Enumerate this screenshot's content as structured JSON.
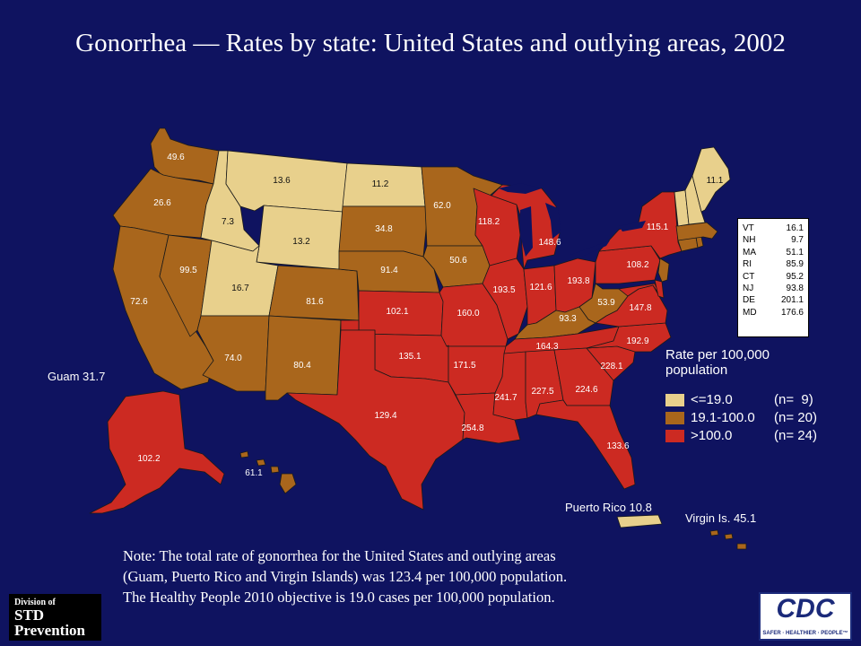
{
  "title": "Gonorrhea — Rates by state: United States and outlying areas, 2002",
  "colors": {
    "background": "#0f1360",
    "low": "#e8d08c",
    "mid": "#a9661c",
    "high": "#cc2a22"
  },
  "states": [
    {
      "abbr": "WA",
      "rate": "49.6",
      "cat": "mid"
    },
    {
      "abbr": "OR",
      "rate": "26.6",
      "cat": "mid"
    },
    {
      "abbr": "CA",
      "rate": "72.6",
      "cat": "mid"
    },
    {
      "abbr": "NV",
      "rate": "99.5",
      "cat": "mid"
    },
    {
      "abbr": "ID",
      "rate": "7.3",
      "cat": "low"
    },
    {
      "abbr": "MT",
      "rate": "13.6",
      "cat": "low"
    },
    {
      "abbr": "WY",
      "rate": "13.2",
      "cat": "low"
    },
    {
      "abbr": "UT",
      "rate": "16.7",
      "cat": "low"
    },
    {
      "abbr": "AZ",
      "rate": "74.0",
      "cat": "mid"
    },
    {
      "abbr": "CO",
      "rate": "81.6",
      "cat": "mid"
    },
    {
      "abbr": "NM",
      "rate": "80.4",
      "cat": "mid"
    },
    {
      "abbr": "ND",
      "rate": "11.2",
      "cat": "low"
    },
    {
      "abbr": "SD",
      "rate": "34.8",
      "cat": "mid"
    },
    {
      "abbr": "NE",
      "rate": "91.4",
      "cat": "mid"
    },
    {
      "abbr": "KS",
      "rate": "102.1",
      "cat": "high"
    },
    {
      "abbr": "OK",
      "rate": "135.1",
      "cat": "high"
    },
    {
      "abbr": "TX",
      "rate": "129.4",
      "cat": "high"
    },
    {
      "abbr": "MN",
      "rate": "62.0",
      "cat": "mid"
    },
    {
      "abbr": "IA",
      "rate": "50.6",
      "cat": "mid"
    },
    {
      "abbr": "MO",
      "rate": "160.0",
      "cat": "high"
    },
    {
      "abbr": "AR",
      "rate": "171.5",
      "cat": "high"
    },
    {
      "abbr": "LA",
      "rate": "254.8",
      "cat": "high"
    },
    {
      "abbr": "WI",
      "rate": "118.2",
      "cat": "high"
    },
    {
      "abbr": "IL",
      "rate": "193.5",
      "cat": "high"
    },
    {
      "abbr": "MI",
      "rate": "148.6",
      "cat": "high"
    },
    {
      "abbr": "IN",
      "rate": "121.6",
      "cat": "high"
    },
    {
      "abbr": "OH",
      "rate": "193.8",
      "cat": "high"
    },
    {
      "abbr": "KY",
      "rate": "93.3",
      "cat": "mid"
    },
    {
      "abbr": "TN",
      "rate": "164.3",
      "cat": "high"
    },
    {
      "abbr": "MS",
      "rate": "241.7",
      "cat": "high"
    },
    {
      "abbr": "AL",
      "rate": "227.5",
      "cat": "high"
    },
    {
      "abbr": "GA",
      "rate": "224.6",
      "cat": "high"
    },
    {
      "abbr": "FL",
      "rate": "133.6",
      "cat": "high"
    },
    {
      "abbr": "SC",
      "rate": "228.1",
      "cat": "high"
    },
    {
      "abbr": "NC",
      "rate": "192.9",
      "cat": "high"
    },
    {
      "abbr": "VA",
      "rate": "147.8",
      "cat": "high"
    },
    {
      "abbr": "WV",
      "rate": "53.9",
      "cat": "mid"
    },
    {
      "abbr": "PA",
      "rate": "108.2",
      "cat": "high"
    },
    {
      "abbr": "NY",
      "rate": "115.1",
      "cat": "high"
    },
    {
      "abbr": "ME",
      "rate": "11.1",
      "cat": "low"
    },
    {
      "abbr": "AK",
      "rate": "102.2",
      "cat": "high"
    },
    {
      "abbr": "HI",
      "rate": "61.1",
      "cat": "mid"
    }
  ],
  "northeast_table": [
    {
      "abbr": "VT",
      "rate": "16.1"
    },
    {
      "abbr": "NH",
      "rate": "9.7"
    },
    {
      "abbr": "MA",
      "rate": "51.1"
    },
    {
      "abbr": "RI",
      "rate": "85.9"
    },
    {
      "abbr": "CT",
      "rate": "95.2"
    },
    {
      "abbr": "NJ",
      "rate": "93.8"
    },
    {
      "abbr": "DE",
      "rate": "201.1"
    },
    {
      "abbr": "MD",
      "rate": "176.6"
    }
  ],
  "outlying": {
    "guam": "Guam 31.7",
    "puerto_rico": "Puerto Rico 10.8",
    "virgin_islands": "Virgin Is. 45.1"
  },
  "legend": {
    "title_line1": "Rate per 100,000",
    "title_line2": "population",
    "items": [
      {
        "label": "<=19.0",
        "count": "(n=  9)",
        "cat": "low"
      },
      {
        "label": "19.1-100.0",
        "count": "(n= 20)",
        "cat": "mid"
      },
      {
        "label": ">100.0",
        "count": "(n= 24)",
        "cat": "high"
      }
    ]
  },
  "note": {
    "line1": "Note: The total rate of gonorrhea for the United States and outlying areas",
    "line2": "(Guam, Puerto Rico and Virgin Islands) was 123.4 per 100,000 population.",
    "line3": "The Healthy People 2010 objective is 19.0 cases per 100,000 population."
  },
  "logos": {
    "std_line1": "Division of",
    "std_line2": "STD",
    "std_line3": "Prevention",
    "cdc_text": "CDC",
    "cdc_tagline": "SAFER · HEALTHIER · PEOPLE™"
  }
}
